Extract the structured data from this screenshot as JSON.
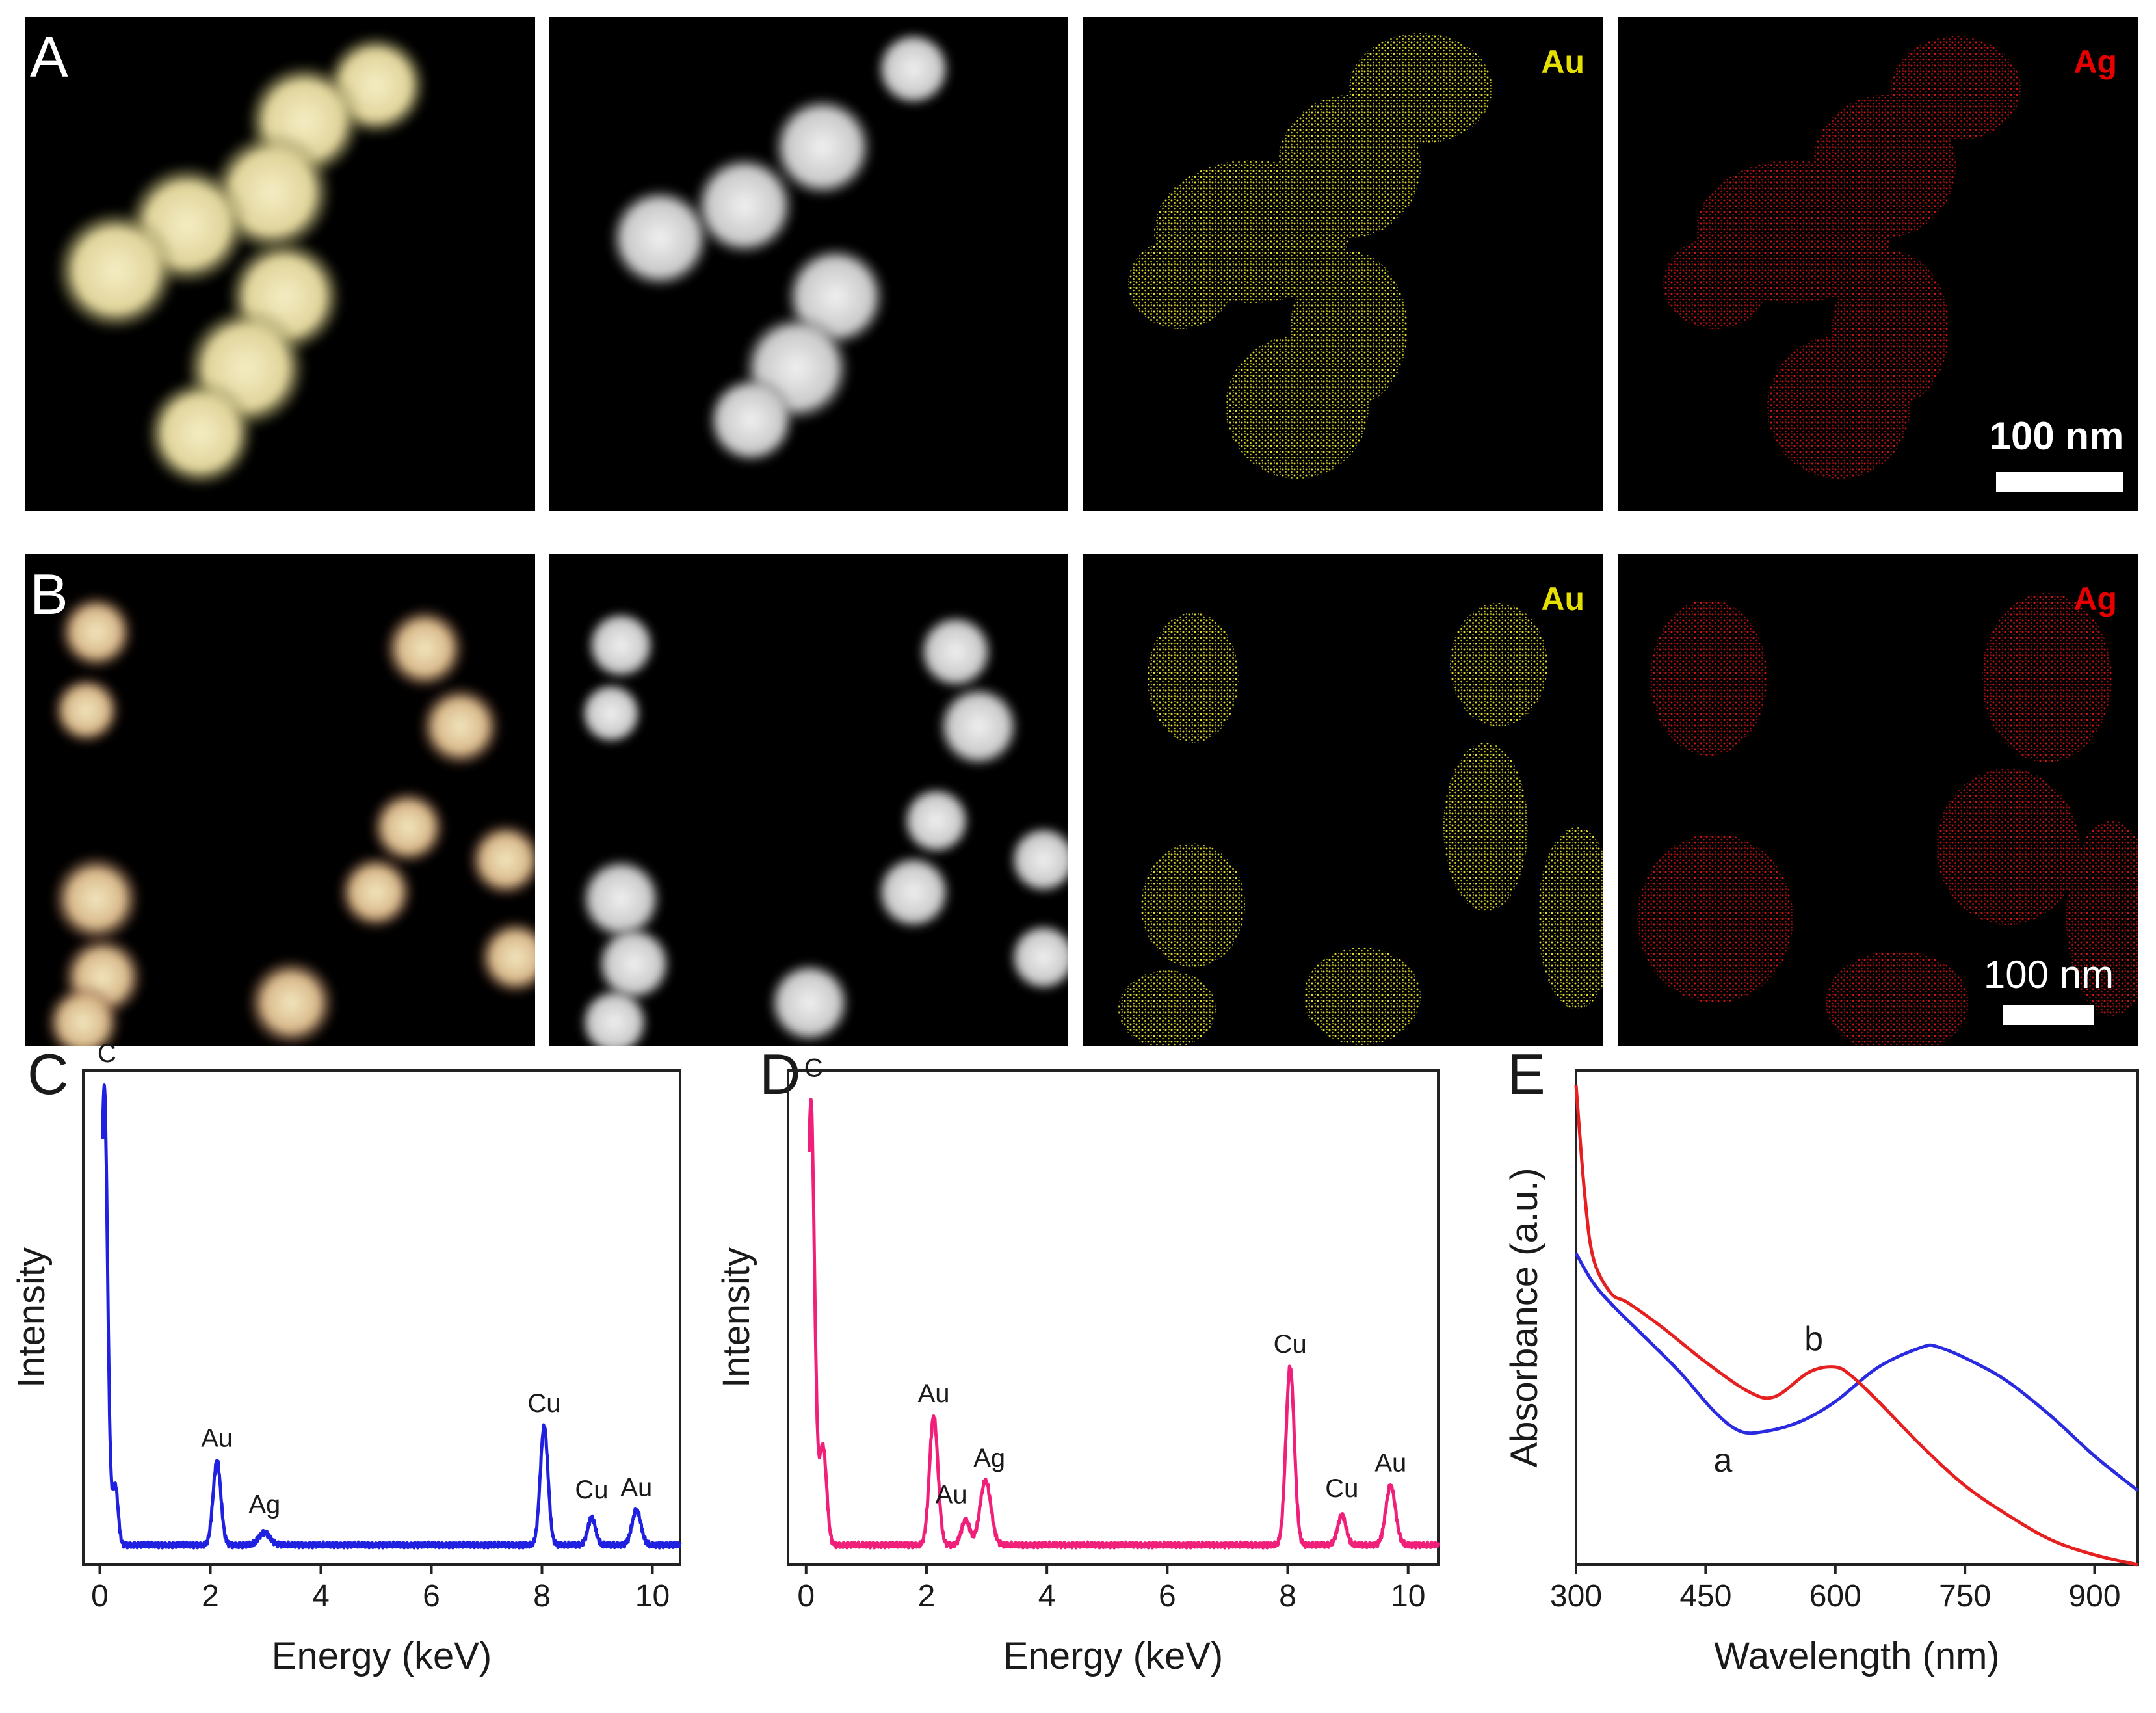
{
  "figure": {
    "row_A": {
      "label": "A",
      "panels": [
        {
          "kind": "overlay"
        },
        {
          "kind": "haadf"
        },
        {
          "kind": "map",
          "element": "Au",
          "color": "#e6e000"
        },
        {
          "kind": "map",
          "element": "Ag",
          "color": "#e60000"
        }
      ],
      "scale_bar": "100 nm"
    },
    "row_B": {
      "label": "B",
      "panels": [
        {
          "kind": "overlay"
        },
        {
          "kind": "haadf"
        },
        {
          "kind": "map",
          "element": "Au",
          "color": "#e6e000"
        },
        {
          "kind": "map",
          "element": "Ag",
          "color": "#e60000"
        }
      ],
      "scale_bar": "100 nm"
    }
  },
  "chart_data": [
    {
      "panel": "C",
      "type": "line",
      "xlabel": "Energy (keV)",
      "ylabel": "Intensity",
      "xlim": [
        -0.3,
        10.5
      ],
      "ylim": [
        0,
        100
      ],
      "xticks": [
        0,
        2,
        4,
        6,
        8,
        10
      ],
      "color": "#2020e0",
      "baseline": 4,
      "peaks": [
        {
          "x": 0.08,
          "height": 93,
          "width": 0.06,
          "label": "C"
        },
        {
          "x": 0.28,
          "height": 12,
          "width": 0.05,
          "label": ""
        },
        {
          "x": 2.12,
          "height": 17,
          "width": 0.07,
          "label": "Au"
        },
        {
          "x": 2.98,
          "height": 2.5,
          "width": 0.1,
          "label": "Ag"
        },
        {
          "x": 8.04,
          "height": 24,
          "width": 0.07,
          "label": "Cu"
        },
        {
          "x": 8.9,
          "height": 5.5,
          "width": 0.07,
          "label": "Cu"
        },
        {
          "x": 9.71,
          "height": 7,
          "width": 0.08,
          "label": "Au"
        }
      ]
    },
    {
      "panel": "D",
      "type": "line",
      "xlabel": "Energy (keV)",
      "ylabel": "Intensity",
      "xlim": [
        -0.3,
        10.5
      ],
      "ylim": [
        0,
        100
      ],
      "xticks": [
        0,
        2,
        4,
        6,
        8,
        10
      ],
      "color": "#f0207a",
      "baseline": 4,
      "peaks": [
        {
          "x": 0.08,
          "height": 90,
          "width": 0.06,
          "label": "C"
        },
        {
          "x": 0.28,
          "height": 20,
          "width": 0.06,
          "label": ""
        },
        {
          "x": 2.12,
          "height": 26,
          "width": 0.07,
          "label": "Au"
        },
        {
          "x": 2.65,
          "height": 5,
          "width": 0.07,
          "label": "Au"
        },
        {
          "x": 2.98,
          "height": 13,
          "width": 0.09,
          "label": "Ag"
        },
        {
          "x": 8.04,
          "height": 36,
          "width": 0.07,
          "label": "Cu"
        },
        {
          "x": 8.9,
          "height": 6,
          "width": 0.07,
          "label": "Cu"
        },
        {
          "x": 9.71,
          "height": 12,
          "width": 0.08,
          "label": "Au"
        }
      ]
    },
    {
      "panel": "E",
      "type": "line",
      "xlabel": "Wavelength (nm)",
      "ylabel": "Absorbance (a.u.)",
      "xlim": [
        300,
        950
      ],
      "ylim": [
        0,
        100
      ],
      "xticks": [
        300,
        450,
        600,
        750,
        900
      ],
      "series": [
        {
          "name": "a",
          "color": "#2a2ae0",
          "x": [
            300,
            320,
            345,
            380,
            420,
            460,
            490,
            520,
            560,
            600,
            650,
            700,
            720,
            760,
            800,
            850,
            900,
            950
          ],
          "y": [
            63,
            57,
            52,
            46,
            39,
            31,
            27,
            27,
            29,
            33,
            40,
            44,
            44,
            41,
            37,
            30,
            22,
            15
          ]
        },
        {
          "name": "b",
          "color": "#e62020",
          "x": [
            300,
            310,
            320,
            340,
            360,
            400,
            450,
            500,
            530,
            570,
            600,
            620,
            650,
            700,
            750,
            800,
            850,
            900,
            950
          ],
          "y": [
            97,
            75,
            62,
            55,
            53,
            48,
            41,
            35,
            34,
            39,
            40,
            38,
            33,
            24,
            16,
            10,
            5,
            2,
            0
          ]
        }
      ]
    }
  ]
}
